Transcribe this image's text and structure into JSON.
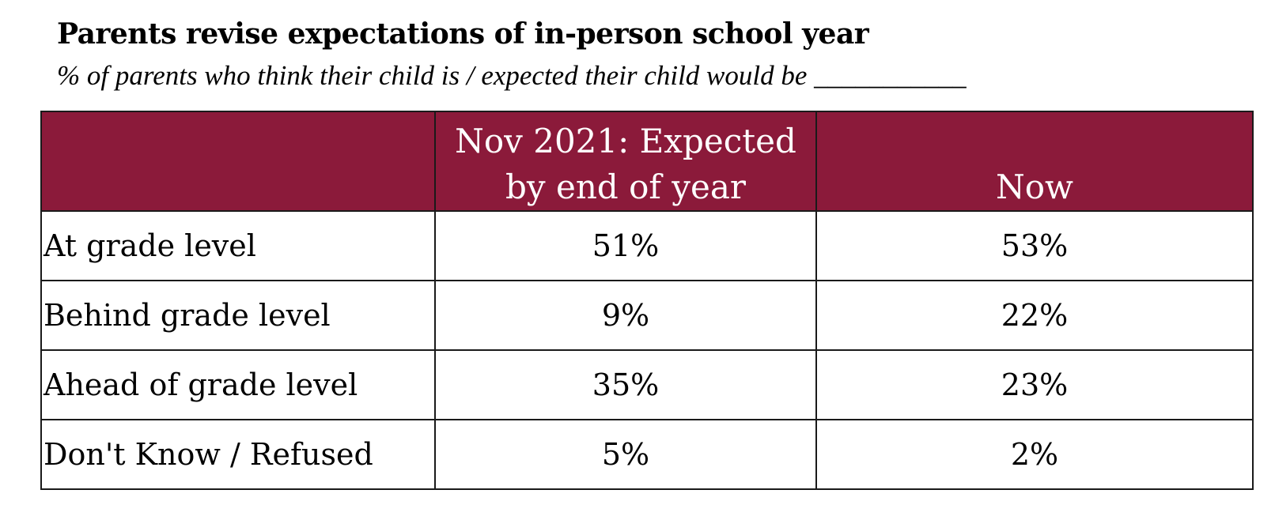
{
  "chart_data": {
    "type": "table",
    "title": "Parents revise expectations of in-person school year",
    "subtitle": "% of parents who think their child is / expected their child would be ___________",
    "header_color": "#8b1a3a",
    "columns": [
      "",
      "Nov 2021: Expected by end of year",
      "Now"
    ],
    "header_lines": {
      "prev": [
        "Nov 2021: Expected",
        "by end of year"
      ],
      "now": "Now"
    },
    "rows": [
      {
        "label": "At grade level",
        "nov_2021": "51%",
        "now": "53%"
      },
      {
        "label": "Behind grade level",
        "nov_2021": "9%",
        "now": "22%"
      },
      {
        "label": "Ahead of grade level",
        "nov_2021": "35%",
        "now": "23%"
      },
      {
        "label": "Don't Know / Refused",
        "nov_2021": "5%",
        "now": "2%"
      }
    ]
  }
}
